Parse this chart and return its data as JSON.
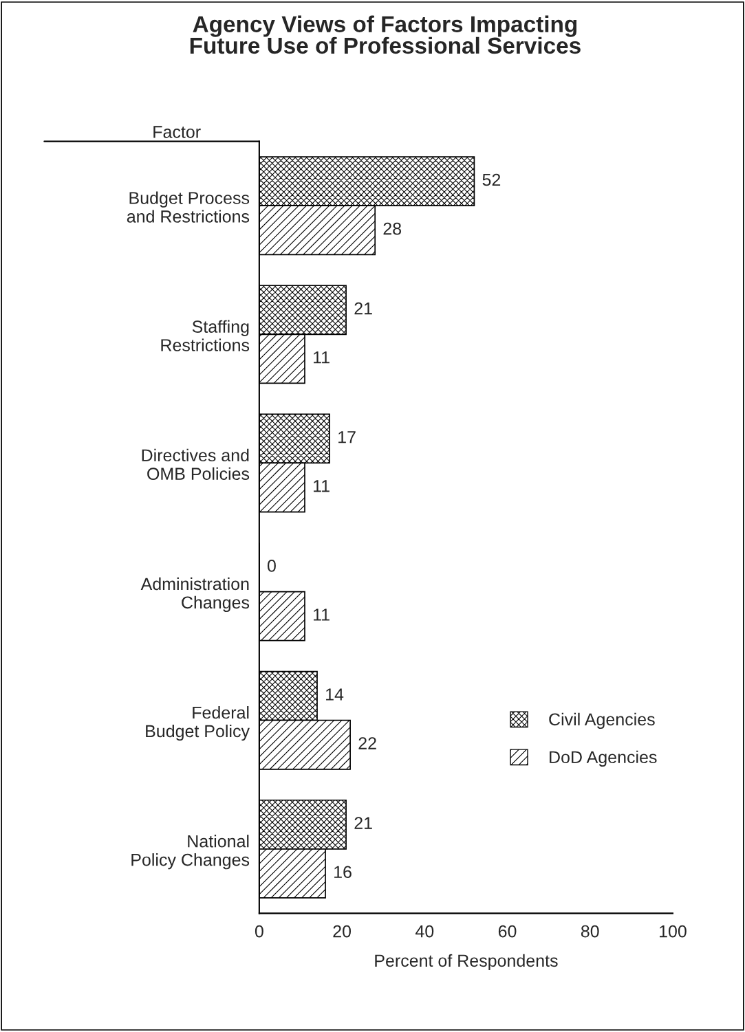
{
  "chart_data": {
    "type": "bar",
    "orientation": "horizontal",
    "title": "Agency Views of Factors Impacting\nFuture Use of Professional Services",
    "ylabel": "Factor",
    "xlabel": "Percent of Respondents",
    "categories": [
      "Budget Process\nand Restrictions",
      "Staffing\nRestrictions",
      "Directives and\nOMB Policies",
      "Administration\nChanges",
      "Federal\nBudget Policy",
      "National\nPolicy Changes"
    ],
    "series": [
      {
        "name": "Civil Agencies",
        "color": "#000000",
        "values": [
          52,
          21,
          17,
          0,
          14,
          21
        ]
      },
      {
        "name": "DoD Agencies",
        "color": "#000000",
        "values": [
          28,
          11,
          11,
          11,
          22,
          16
        ]
      }
    ],
    "xlim": [
      0,
      100
    ],
    "xticks": [
      0,
      20,
      40,
      60,
      80,
      100
    ],
    "data_labels": true,
    "grid": false,
    "legend": "lower right"
  }
}
